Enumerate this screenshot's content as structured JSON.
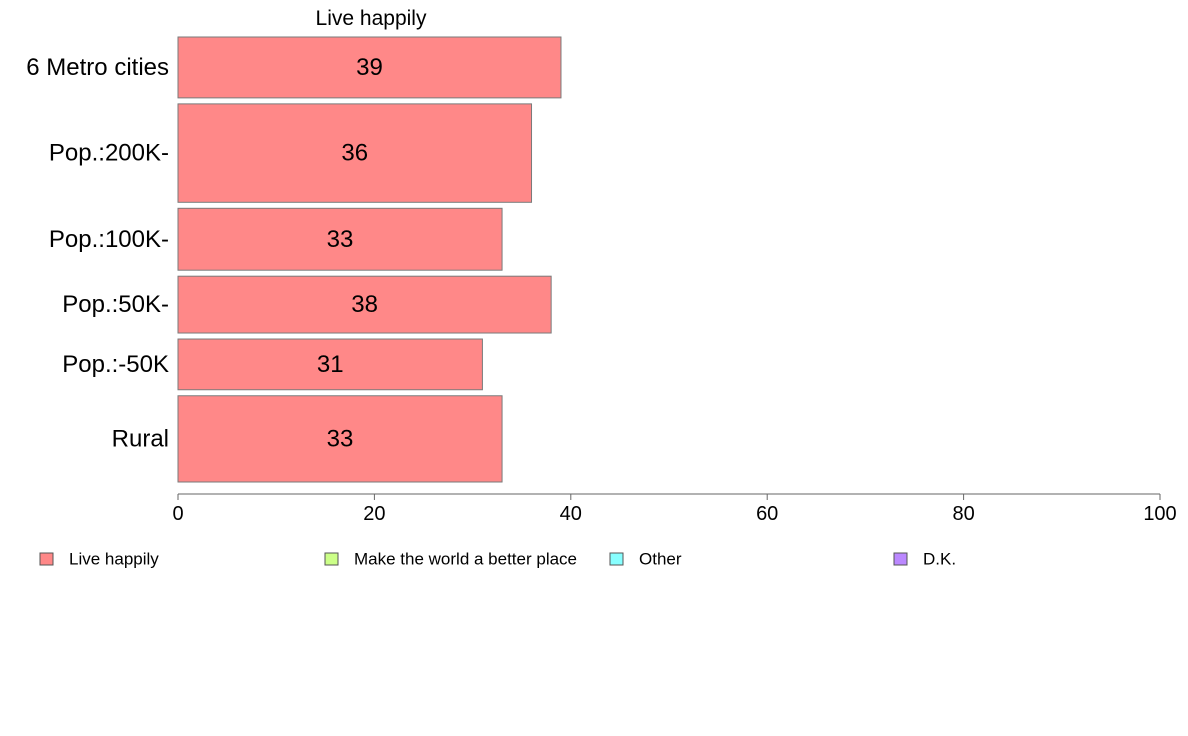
{
  "chart_data": {
    "type": "bar",
    "orientation": "horizontal",
    "title": "Live happily",
    "categories": [
      "6 Metro cities",
      "Pop.:200K-",
      "Pop.:100K-",
      "Pop.:50K-",
      "Pop.:-50K",
      "Rural"
    ],
    "series": [
      {
        "name": "Live happily",
        "values": [
          39,
          36,
          33,
          38,
          31,
          33
        ],
        "color": "#ff8888"
      }
    ],
    "category_weights": [
      60,
      97,
      61,
      56,
      50,
      85
    ],
    "xlim": [
      0,
      100
    ],
    "xticks": [
      0,
      20,
      40,
      60,
      80,
      100
    ],
    "grid": false,
    "legend": {
      "placement": "bottom",
      "entries": [
        {
          "label": "Live happily",
          "color": "#ff8888"
        },
        {
          "label": "Make the world a better place",
          "color": "#ccff88"
        },
        {
          "label": "Other",
          "color": "#88ffff"
        },
        {
          "label": "D.K.",
          "color": "#bb88ff"
        }
      ]
    }
  }
}
